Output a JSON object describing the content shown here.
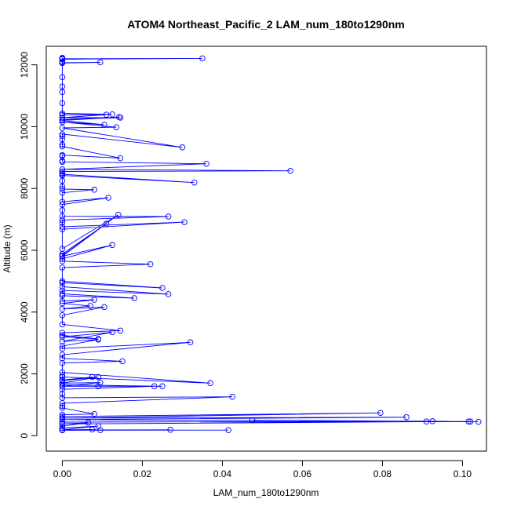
{
  "chart_data": {
    "type": "line",
    "title": "ATOM4 Northeast_Pacific_2 LAM_num_180to1290nm",
    "xlabel": "LAM_num_180to1290nm",
    "ylabel": "Altitude (m)",
    "xlim": [
      -0.004,
      0.106
    ],
    "ylim": [
      -500,
      12600
    ],
    "xticks": [
      0.0,
      0.02,
      0.04,
      0.06,
      0.08,
      0.1
    ],
    "xtick_labels": [
      "0.00",
      "0.02",
      "0.04",
      "0.06",
      "0.08",
      "0.10"
    ],
    "yticks": [
      0,
      2000,
      4000,
      6000,
      8000,
      10000,
      12000
    ],
    "yticks_labels": [
      "0",
      "2000",
      "4000",
      "6000",
      "8000",
      "10000",
      "12000"
    ],
    "grid": false,
    "series": [
      {
        "color": "#0000ff",
        "marker": "open-circle",
        "points": [
          [
            0.0,
            12230
          ],
          [
            0.0,
            12200
          ],
          [
            0.035,
            12210
          ],
          [
            0.0,
            12180
          ],
          [
            0.0,
            12100
          ],
          [
            0.0,
            12090
          ],
          [
            0.0,
            12070
          ],
          [
            0.0095,
            12080
          ],
          [
            0.0,
            12060
          ],
          [
            0.0,
            11600
          ],
          [
            0.0,
            11300
          ],
          [
            0.0,
            11120
          ],
          [
            0.0,
            10760
          ],
          [
            0.0,
            10430
          ],
          [
            0.0125,
            10400
          ],
          [
            0.0,
            10380
          ],
          [
            0.011,
            10390
          ],
          [
            0.0,
            10290
          ],
          [
            0.0145,
            10290
          ],
          [
            0.0,
            10230
          ],
          [
            0.0142,
            10310
          ],
          [
            0.0,
            10200
          ],
          [
            0.0105,
            10060
          ],
          [
            0.0,
            10150
          ],
          [
            0.0135,
            9980
          ],
          [
            0.0,
            9960
          ],
          [
            0.03,
            9330
          ],
          [
            0.0,
            9760
          ],
          [
            0.0,
            9700
          ],
          [
            0.0,
            9600
          ],
          [
            0.0,
            9420
          ],
          [
            0.0,
            9360
          ],
          [
            0.0145,
            8980
          ],
          [
            0.0,
            9080
          ],
          [
            0.0,
            9050
          ],
          [
            0.0,
            8890
          ],
          [
            0.0,
            8860
          ],
          [
            0.036,
            8800
          ],
          [
            0.0,
            8620
          ],
          [
            0.057,
            8570
          ],
          [
            0.0,
            8550
          ],
          [
            0.0,
            8500
          ],
          [
            0.0,
            8460
          ],
          [
            0.033,
            8190
          ],
          [
            0.0,
            8420
          ],
          [
            0.0,
            8250
          ],
          [
            0.0,
            8060
          ],
          [
            0.0,
            7980
          ],
          [
            0.008,
            7960
          ],
          [
            0.0,
            7860
          ],
          [
            0.0,
            7570
          ],
          [
            0.0115,
            7700
          ],
          [
            0.0,
            7480
          ],
          [
            0.0,
            7300
          ],
          [
            0.0,
            7100
          ],
          [
            0.0265,
            7090
          ],
          [
            0.0,
            6980
          ],
          [
            0.0,
            6890
          ],
          [
            0.0,
            6760
          ],
          [
            0.0305,
            6910
          ],
          [
            0.0,
            6680
          ],
          [
            0.0,
            6050
          ],
          [
            0.014,
            7150
          ],
          [
            0.0,
            5830
          ],
          [
            0.0,
            5880
          ],
          [
            0.011,
            6860
          ],
          [
            0.0,
            5810
          ],
          [
            0.0125,
            6170
          ],
          [
            0.0,
            5720
          ],
          [
            0.0,
            5650
          ],
          [
            0.022,
            5550
          ],
          [
            0.0,
            5440
          ],
          [
            0.0,
            5000
          ],
          [
            0.025,
            4780
          ],
          [
            0.0,
            4950
          ],
          [
            0.0,
            4820
          ],
          [
            0.0265,
            4580
          ],
          [
            0.0,
            4700
          ],
          [
            0.0,
            4590
          ],
          [
            0.018,
            4450
          ],
          [
            0.0,
            4530
          ],
          [
            0.0,
            4360
          ],
          [
            0.008,
            4400
          ],
          [
            0.0,
            4280
          ],
          [
            0.007,
            4200
          ],
          [
            0.0,
            4100
          ],
          [
            0.0105,
            4160
          ],
          [
            0.0,
            3900
          ],
          [
            0.0,
            3600
          ],
          [
            0.0145,
            3400
          ],
          [
            0.0,
            3330
          ],
          [
            0.0,
            3250
          ],
          [
            0.009,
            3130
          ],
          [
            0.0,
            3200
          ],
          [
            0.0125,
            3350
          ],
          [
            0.0,
            3050
          ],
          [
            0.009,
            3110
          ],
          [
            0.0,
            2900
          ],
          [
            0.0,
            2820
          ],
          [
            0.032,
            3020
          ],
          [
            0.0,
            2620
          ],
          [
            0.0,
            2500
          ],
          [
            0.015,
            2410
          ],
          [
            0.0,
            2350
          ],
          [
            0.0,
            2050
          ],
          [
            0.037,
            1700
          ],
          [
            0.0,
            1900
          ],
          [
            0.0,
            1950
          ],
          [
            0.0,
            1800
          ],
          [
            0.0075,
            1900
          ],
          [
            0.0,
            1780
          ],
          [
            0.009,
            1900
          ],
          [
            0.0,
            1700
          ],
          [
            0.0095,
            1720
          ],
          [
            0.0,
            1600
          ],
          [
            0.009,
            1600
          ],
          [
            0.025,
            1600
          ],
          [
            0.0,
            1650
          ],
          [
            0.023,
            1600
          ],
          [
            0.0,
            1500
          ],
          [
            0.0,
            1350
          ],
          [
            0.0,
            1230
          ],
          [
            0.0425,
            1260
          ],
          [
            0.0,
            1050
          ],
          [
            0.0,
            960
          ],
          [
            0.0,
            900
          ],
          [
            0.008,
            700
          ],
          [
            0.0,
            680
          ],
          [
            0.0,
            620
          ],
          [
            0.0795,
            740
          ],
          [
            0.0,
            570
          ],
          [
            0.086,
            600
          ],
          [
            0.0,
            520
          ],
          [
            0.102,
            460
          ],
          [
            0.0475,
            500
          ],
          [
            0.091,
            460
          ],
          [
            0.104,
            450
          ],
          [
            0.0925,
            470
          ],
          [
            0.0,
            440
          ],
          [
            0.1015,
            460
          ],
          [
            0.0,
            380
          ],
          [
            0.0065,
            420
          ],
          [
            0.0,
            310
          ],
          [
            0.0,
            250
          ],
          [
            0.009,
            310
          ],
          [
            0.0,
            190
          ],
          [
            0.0075,
            200
          ],
          [
            0.0095,
            180
          ],
          [
            0.027,
            190
          ],
          [
            0.0,
            185
          ],
          [
            0.0415,
            180
          ],
          [
            0.0,
            175
          ]
        ]
      }
    ]
  }
}
